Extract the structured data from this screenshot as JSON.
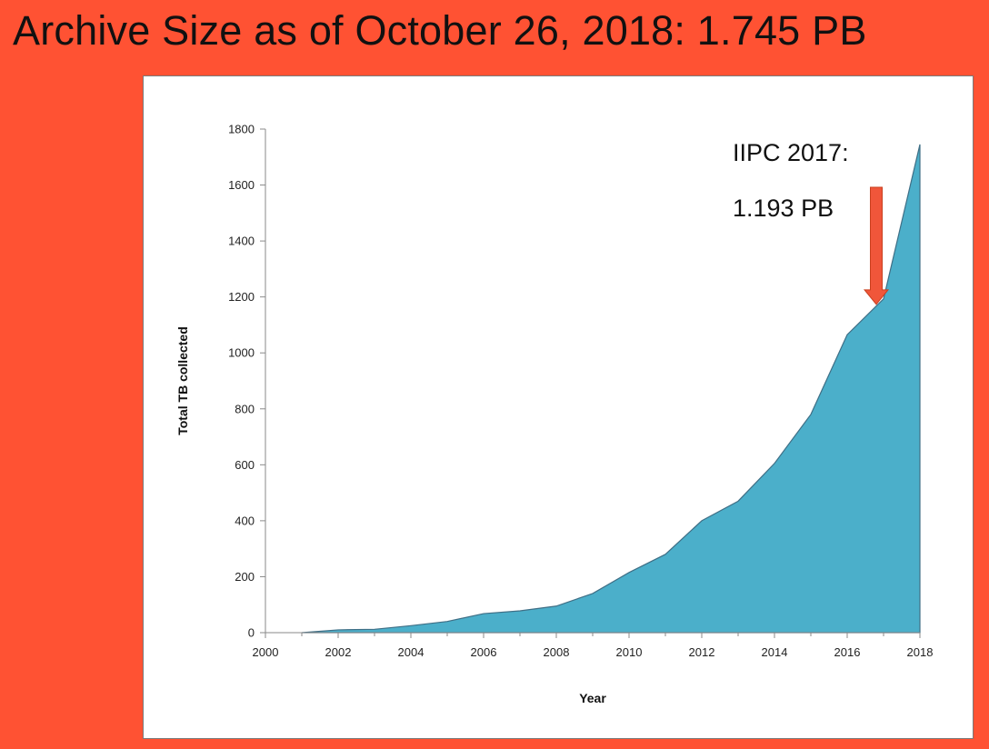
{
  "title": "Archive Size as of October 26, 2018: 1.745 PB",
  "colors": {
    "background": "#ff5233",
    "area_fill": "#4bafca",
    "area_stroke": "#3f6f86",
    "arrow": "#f0563a"
  },
  "chart_data": {
    "type": "area",
    "xlabel": "Year",
    "ylabel": "Total TB collected",
    "xlim": [
      2000,
      2018
    ],
    "ylim": [
      0,
      1800
    ],
    "x_ticks": [
      2000,
      2002,
      2004,
      2006,
      2008,
      2010,
      2012,
      2014,
      2016,
      2018
    ],
    "y_ticks": [
      0,
      200,
      400,
      600,
      800,
      1000,
      1200,
      1400,
      1600,
      1800
    ],
    "grid": false,
    "series": [
      {
        "x": [
          2001,
          2002,
          2003,
          2004,
          2005,
          2006,
          2007,
          2008,
          2009,
          2010,
          2011,
          2012,
          2013,
          2014,
          2015,
          2016,
          2017,
          2018
        ],
        "values": [
          0,
          10,
          12,
          25,
          40,
          68,
          78,
          95,
          140,
          215,
          280,
          400,
          470,
          605,
          780,
          1065,
          1193,
          1745
        ]
      }
    ],
    "annotations": [
      {
        "lines": [
          "IIPC 2017:",
          "1.193 PB"
        ],
        "x": 2017,
        "y": 1193,
        "arrow": "down"
      }
    ]
  }
}
